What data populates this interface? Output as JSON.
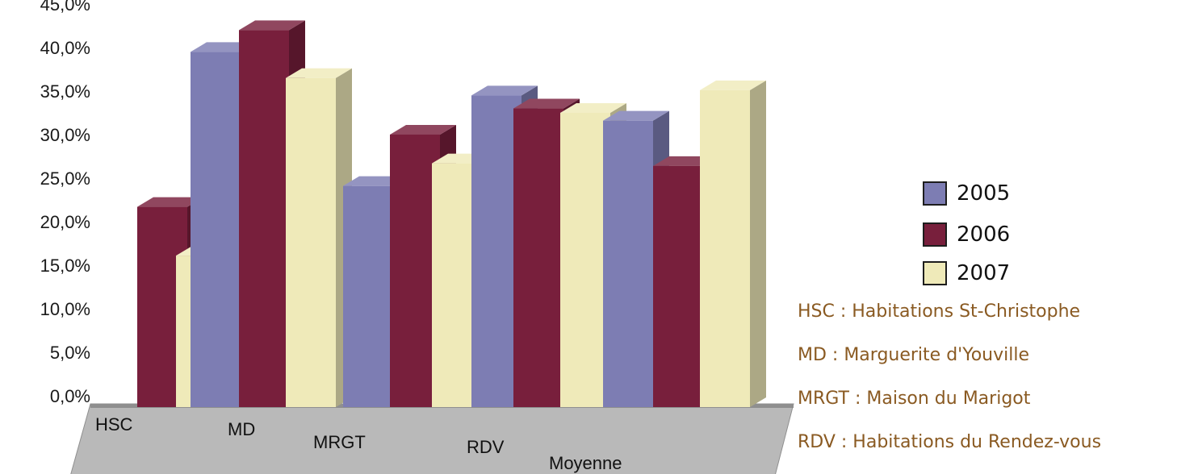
{
  "chart_data": {
    "type": "bar",
    "title": "",
    "xlabel": "",
    "ylabel": "",
    "categories": [
      "HSC",
      "MD",
      "MRGT",
      "RDV",
      "Moyenne"
    ],
    "series": [
      {
        "name": "2005",
        "color": "#7d7db3",
        "values": [
          null,
          40.8,
          25.4,
          35.8,
          32.9
        ]
      },
      {
        "name": "2006",
        "color": "#781f3c",
        "values": [
          23.0,
          43.3,
          31.3,
          34.3,
          27.7
        ]
      },
      {
        "name": "2007",
        "color": "#efeab9",
        "values": [
          17.4,
          37.8,
          28.0,
          33.8,
          36.4
        ]
      }
    ],
    "y_ticks": [
      "0,0%",
      "5,0%",
      "10,0%",
      "15,0%",
      "20,0%",
      "25,0%",
      "30,0%",
      "35,0%",
      "40,0%",
      "45,0%"
    ],
    "ylim": [
      0,
      45
    ],
    "grid": false,
    "legend_position": "right",
    "notes": [
      "HSC : Habitations St-Christophe",
      "MD : Marguerite d'Youville",
      "MRGT : Maison du Marigot",
      "RDV : Habitations du Rendez-vous"
    ]
  }
}
